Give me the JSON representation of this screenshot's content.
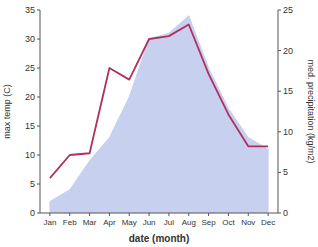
{
  "chart_data": {
    "type": "line",
    "categories": [
      "Jan",
      "Feb",
      "Mar",
      "Apr",
      "May",
      "Jun",
      "Jul",
      "Aug",
      "Sep",
      "Oct",
      "Nov",
      "Dec"
    ],
    "series": [
      {
        "type": "area",
        "color": "#c8d0f0",
        "values": [
          2.0,
          4.0,
          9.0,
          13.0,
          20.0,
          30.0,
          31.0,
          34.0,
          25.0,
          18.0,
          13.0,
          11.0
        ]
      },
      {
        "type": "line",
        "color": "#b03060",
        "values": [
          6.0,
          10.0,
          10.3,
          25.0,
          23.0,
          30.0,
          30.5,
          32.5,
          24.0,
          17.0,
          11.5,
          11.5
        ]
      }
    ],
    "ylim": [
      0,
      35
    ],
    "yticks": [
      0,
      5,
      10,
      15,
      20,
      25,
      30,
      35
    ],
    "y2lim": [
      0,
      25
    ],
    "y2ticks": [
      0,
      5,
      10,
      15,
      20,
      25
    ],
    "xlabel": "date (month)",
    "ylabel": "max temp (C)",
    "y2label": "med. precipitation (kg/m2)",
    "grid": false
  }
}
